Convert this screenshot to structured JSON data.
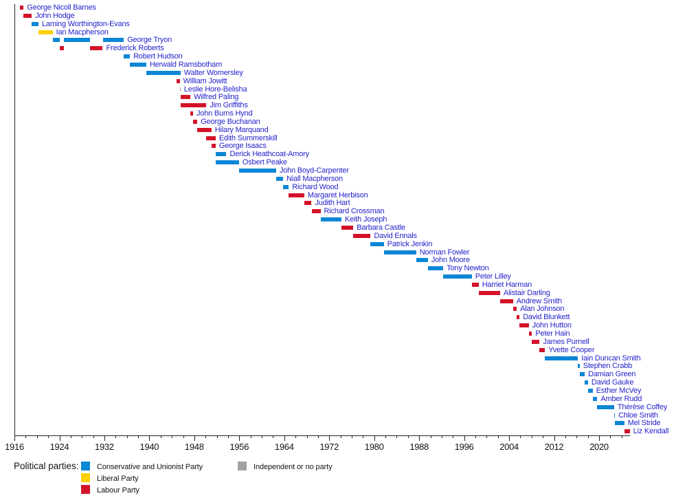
{
  "chart_data": {
    "type": "timeline-bar",
    "title": "",
    "axis": {
      "start": 1916,
      "end": 2025.5,
      "major_ticks": [
        1916,
        1924,
        1932,
        1940,
        1948,
        1956,
        1964,
        1972,
        1980,
        1988,
        1996,
        2004,
        2012,
        2020
      ],
      "minor_tick_step": 2,
      "minor_tick_last": 2024,
      "axis_color": "#222222"
    },
    "parties": {
      "conservative": {
        "label": "Conservative and Unionist Party",
        "color": "#0a86d6"
      },
      "liberal": {
        "label": "Liberal Party",
        "color": "#fccf00"
      },
      "labour": {
        "label": "Labour Party",
        "color": "#d21329"
      },
      "independent": {
        "label": "Independent or no party",
        "color": "#a2a2a2"
      }
    },
    "label_color": "#2222cc",
    "people": [
      {
        "name": "George Nicoll Barnes",
        "party": "labour",
        "terms": [
          [
            1916.92,
            1917.62
          ]
        ]
      },
      {
        "name": "John Hodge",
        "party": "labour",
        "terms": [
          [
            1917.62,
            1919.08
          ]
        ]
      },
      {
        "name": "Laming Worthington-Evans",
        "party": "conservative",
        "terms": [
          [
            1919.08,
            1920.28
          ]
        ]
      },
      {
        "name": "Ian Macpherson",
        "party": "liberal",
        "terms": [
          [
            1920.28,
            1922.8
          ]
        ]
      },
      {
        "name": "George Tryon",
        "party": "conservative",
        "terms": [
          [
            1922.8,
            1924.05
          ],
          [
            1924.85,
            1929.42
          ],
          [
            1931.7,
            1935.45
          ]
        ]
      },
      {
        "name": "Frederick Roberts",
        "party": "labour",
        "terms": [
          [
            1924.05,
            1924.85
          ],
          [
            1929.42,
            1931.7
          ]
        ]
      },
      {
        "name": "Robert Hudson",
        "party": "conservative",
        "terms": [
          [
            1935.45,
            1936.55
          ]
        ]
      },
      {
        "name": "Herwald Ramsbotham",
        "party": "conservative",
        "terms": [
          [
            1936.55,
            1939.45
          ]
        ]
      },
      {
        "name": "Walter Womersley",
        "party": "conservative",
        "terms": [
          [
            1939.45,
            1945.55
          ]
        ]
      },
      {
        "name": "William Jowitt",
        "party": "labour",
        "terms": [
          [
            1944.85,
            1945.4
          ]
        ]
      },
      {
        "name": "Leslie Hore-Belisha",
        "party": "independent",
        "terms": [
          [
            1945.4,
            1945.55
          ]
        ]
      },
      {
        "name": "Wilfred Paling",
        "party": "labour",
        "terms": [
          [
            1945.55,
            1947.3
          ]
        ]
      },
      {
        "name": "Jim Griffiths",
        "party": "labour",
        "terms": [
          [
            1945.55,
            1950.15
          ]
        ]
      },
      {
        "name": "John Burns Hynd",
        "party": "labour",
        "terms": [
          [
            1947.3,
            1947.78
          ]
        ]
      },
      {
        "name": "George Buchanan",
        "party": "labour",
        "terms": [
          [
            1947.78,
            1948.55
          ]
        ]
      },
      {
        "name": "Hilary Marquand",
        "party": "labour",
        "terms": [
          [
            1948.55,
            1951.05
          ]
        ]
      },
      {
        "name": "Edith Summerskill",
        "party": "labour",
        "terms": [
          [
            1950.15,
            1951.8
          ]
        ]
      },
      {
        "name": "George Isaacs",
        "party": "labour",
        "terms": [
          [
            1951.05,
            1951.8
          ]
        ]
      },
      {
        "name": "Derick Heathcoat-Amory",
        "party": "conservative",
        "terms": [
          [
            1951.85,
            1953.7
          ]
        ]
      },
      {
        "name": "Osbert Peake",
        "party": "conservative",
        "terms": [
          [
            1951.85,
            1955.95
          ]
        ]
      },
      {
        "name": "John Boyd-Carpenter",
        "party": "conservative",
        "terms": [
          [
            1955.95,
            1962.55
          ]
        ]
      },
      {
        "name": "Niall Macpherson",
        "party": "conservative",
        "terms": [
          [
            1962.55,
            1963.8
          ]
        ]
      },
      {
        "name": "Richard Wood",
        "party": "conservative",
        "terms": [
          [
            1963.8,
            1964.8
          ]
        ]
      },
      {
        "name": "Margaret Herbison",
        "party": "labour",
        "terms": [
          [
            1964.8,
            1967.55
          ]
        ]
      },
      {
        "name": "Judith Hart",
        "party": "labour",
        "terms": [
          [
            1967.55,
            1968.85
          ]
        ]
      },
      {
        "name": "Richard Crossman",
        "party": "labour",
        "terms": [
          [
            1968.85,
            1970.45
          ]
        ]
      },
      {
        "name": "Keith Joseph",
        "party": "conservative",
        "terms": [
          [
            1970.45,
            1974.17
          ]
        ]
      },
      {
        "name": "Barbara Castle",
        "party": "labour",
        "terms": [
          [
            1974.17,
            1976.27
          ]
        ]
      },
      {
        "name": "David Ennals",
        "party": "labour",
        "terms": [
          [
            1976.27,
            1979.35
          ]
        ]
      },
      {
        "name": "Patrick Jenkin",
        "party": "conservative",
        "terms": [
          [
            1979.35,
            1981.7
          ]
        ]
      },
      {
        "name": "Norman Fowler",
        "party": "conservative",
        "terms": [
          [
            1981.7,
            1987.45
          ]
        ]
      },
      {
        "name": "John Moore",
        "party": "conservative",
        "terms": [
          [
            1987.45,
            1989.55
          ]
        ]
      },
      {
        "name": "Tony Newton",
        "party": "conservative",
        "terms": [
          [
            1989.55,
            1992.28
          ]
        ]
      },
      {
        "name": "Peter Lilley",
        "party": "conservative",
        "terms": [
          [
            1992.28,
            1997.35
          ]
        ]
      },
      {
        "name": "Harriet Harman",
        "party": "labour",
        "terms": [
          [
            1997.35,
            1998.58
          ]
        ]
      },
      {
        "name": "Alistair Darling",
        "party": "labour",
        "terms": [
          [
            1998.58,
            2002.4
          ]
        ]
      },
      {
        "name": "Andrew Smith",
        "party": "labour",
        "terms": [
          [
            2002.4,
            2004.7
          ]
        ]
      },
      {
        "name": "Alan Johnson",
        "party": "labour",
        "terms": [
          [
            2004.7,
            2005.35
          ]
        ]
      },
      {
        "name": "David Blunkett",
        "party": "labour",
        "terms": [
          [
            2005.35,
            2005.85
          ]
        ]
      },
      {
        "name": "John Hutton",
        "party": "labour",
        "terms": [
          [
            2005.85,
            2007.5
          ]
        ]
      },
      {
        "name": "Peter Hain",
        "party": "labour",
        "terms": [
          [
            2007.5,
            2008.07
          ]
        ]
      },
      {
        "name": "James Purnell",
        "party": "labour",
        "terms": [
          [
            2008.07,
            2009.42
          ]
        ]
      },
      {
        "name": "Yvette Cooper",
        "party": "labour",
        "terms": [
          [
            2009.42,
            2010.37
          ]
        ]
      },
      {
        "name": "Iain Duncan Smith",
        "party": "conservative",
        "terms": [
          [
            2010.37,
            2016.22
          ]
        ]
      },
      {
        "name": "Stephen Crabb",
        "party": "conservative",
        "terms": [
          [
            2016.22,
            2016.54
          ]
        ]
      },
      {
        "name": "Damian Green",
        "party": "conservative",
        "terms": [
          [
            2016.54,
            2017.45
          ]
        ]
      },
      {
        "name": "David Gauke",
        "party": "conservative",
        "terms": [
          [
            2017.45,
            2018.03
          ]
        ]
      },
      {
        "name": "Esther McVey",
        "party": "conservative",
        "terms": [
          [
            2018.03,
            2018.88
          ]
        ]
      },
      {
        "name": "Amber Rudd",
        "party": "conservative",
        "terms": [
          [
            2018.88,
            2019.68
          ]
        ]
      },
      {
        "name": "Thérèse Coffey",
        "party": "conservative",
        "terms": [
          [
            2019.68,
            2022.68
          ]
        ]
      },
      {
        "name": "Chloe Smith",
        "party": "conservative",
        "terms": [
          [
            2022.68,
            2022.82
          ]
        ]
      },
      {
        "name": "Mel Stride",
        "party": "conservative",
        "terms": [
          [
            2022.82,
            2024.5
          ]
        ]
      },
      {
        "name": "Liz Kendall",
        "party": "labour",
        "terms": [
          [
            2024.5,
            2025.45
          ]
        ]
      }
    ]
  },
  "legend": {
    "title": "Political parties:",
    "column1": [
      "conservative",
      "liberal",
      "labour"
    ],
    "column2": [
      "independent"
    ]
  }
}
